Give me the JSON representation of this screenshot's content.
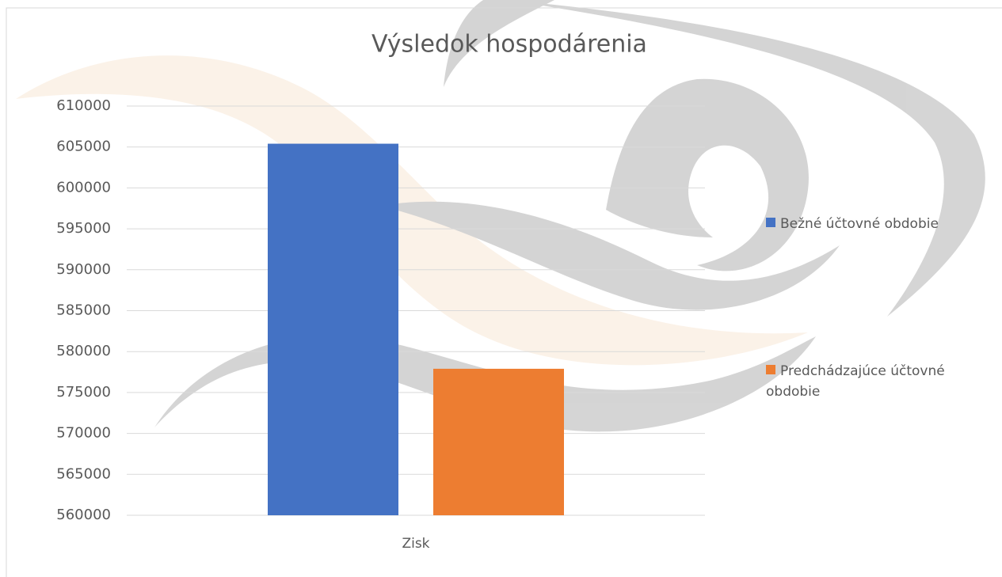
{
  "chart_data": {
    "type": "bar",
    "title": "Výsledok hospodárenia",
    "categories": [
      "Zisk"
    ],
    "series": [
      {
        "name": "Bežné účtovné obdobie",
        "color": "#4472c4",
        "values": [
          605400
        ]
      },
      {
        "name": "Predchádzajúce účtovné obdobie",
        "color": "#ed7d31",
        "values": [
          577900
        ]
      }
    ],
    "ylim": [
      560000,
      610000
    ],
    "yticks": [
      560000,
      565000,
      570000,
      575000,
      580000,
      585000,
      590000,
      595000,
      600000,
      605000,
      610000
    ],
    "grid": true,
    "legend": "right"
  }
}
